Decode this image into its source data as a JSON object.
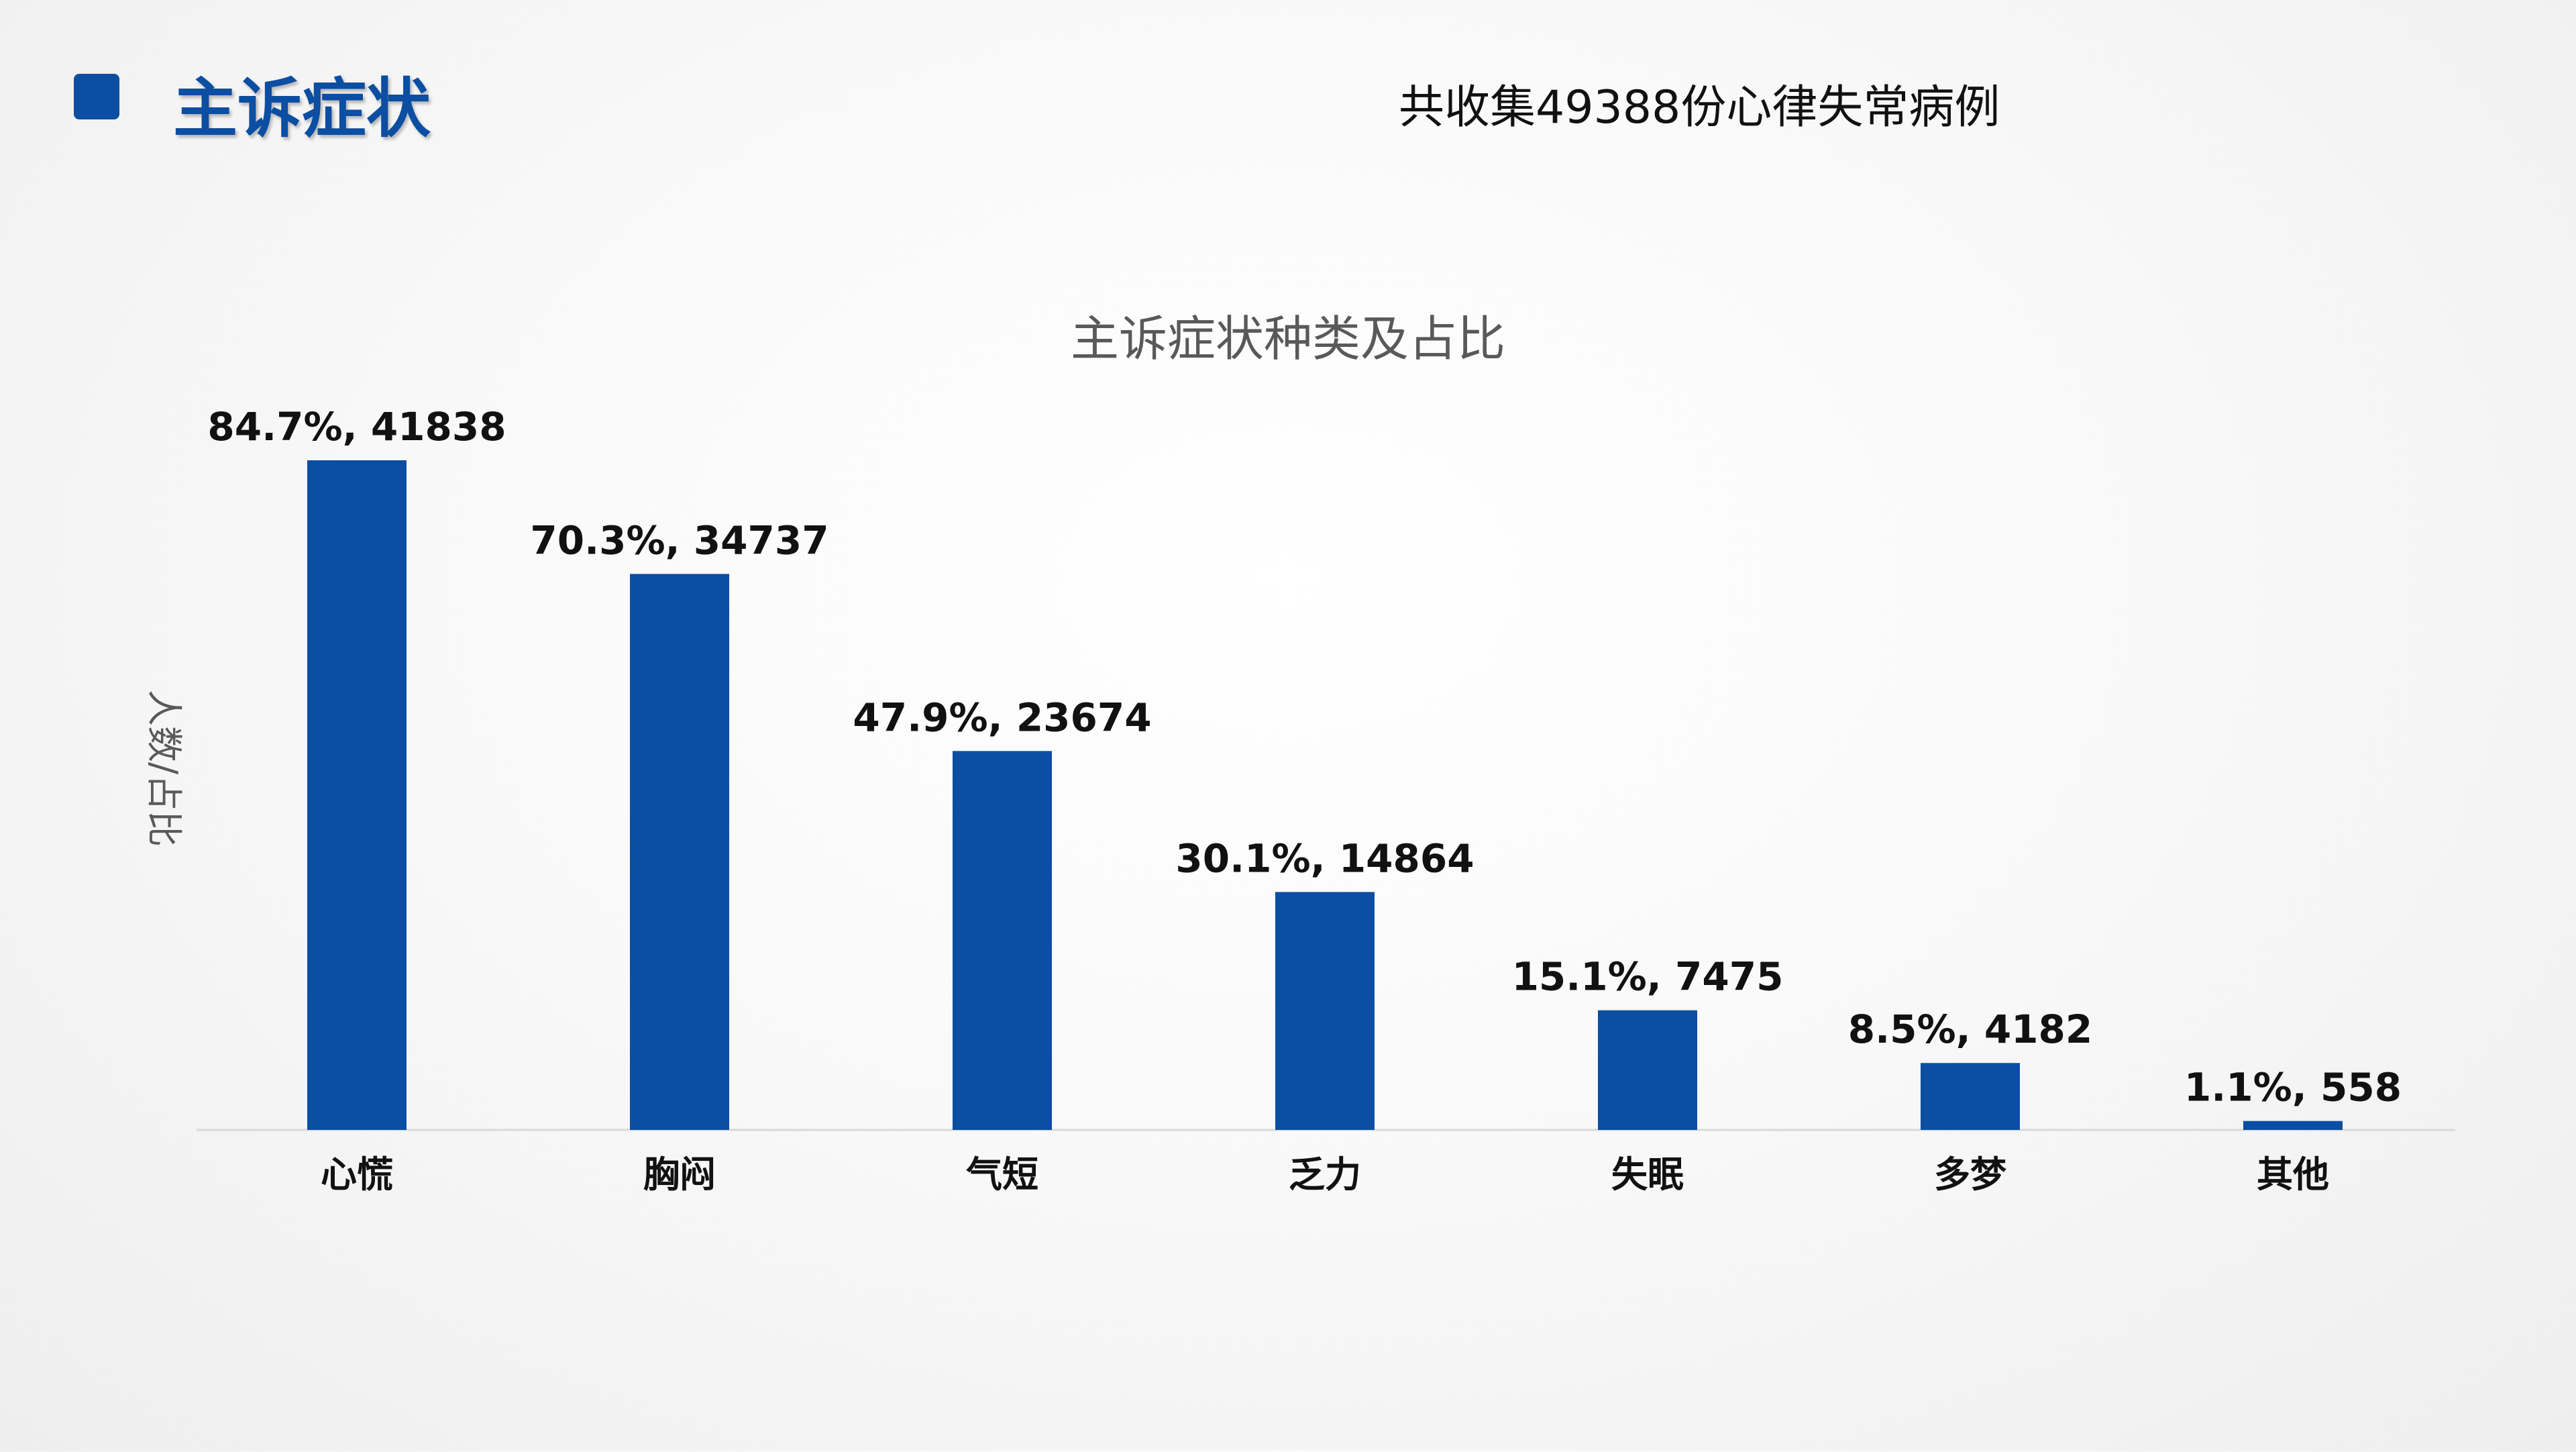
{
  "header": {
    "title": "主诉症状",
    "subtitle": "共收集49388份心律失常病例"
  },
  "colors": {
    "accent": "#0b4ea2",
    "bar": "#0b4ea2",
    "axis_line": "#d9d9d9",
    "chart_title": "#595959"
  },
  "chart_data": {
    "type": "bar",
    "title": "主诉症状种类及占比",
    "xlabel": "",
    "ylabel": "人数/占比",
    "categories": [
      "心慌",
      "胸闷",
      "气短",
      "乏力",
      "失眠",
      "多梦",
      "其他"
    ],
    "values": [
      41838,
      34737,
      23674,
      14864,
      7475,
      4182,
      558
    ],
    "percentages": [
      "84.7%",
      "70.3%",
      "47.9%",
      "30.1%",
      "15.1%",
      "8.5%",
      "1.1%"
    ],
    "data_labels": [
      "84.7%, 41838",
      "70.3%, 34737",
      "47.9%, 23674",
      "30.1%, 14864",
      "15.1%, 7475",
      "8.5%, 4182",
      "1.1%, 558"
    ],
    "ylim": [
      0,
      41838
    ],
    "grid": false,
    "legend": "none"
  }
}
